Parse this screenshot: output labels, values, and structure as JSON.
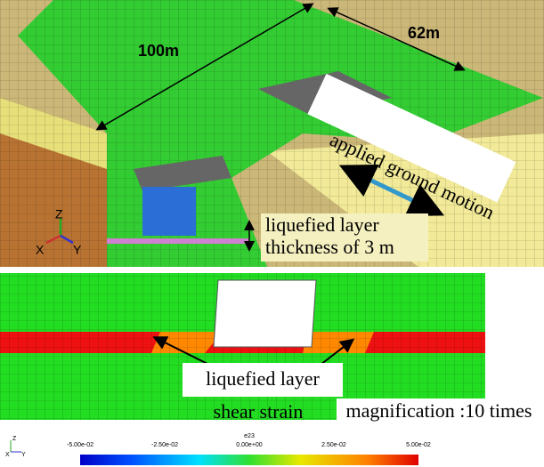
{
  "top_view": {
    "length_label": "100m",
    "width_label": "62m",
    "motion_label": "applied ground motion",
    "layer_label_line1": "liquefied layer",
    "layer_label_line2": "thickness of 3 m",
    "axes": {
      "z": "Z",
      "x": "X",
      "y": "Y"
    }
  },
  "bottom_view": {
    "layer_label": "liquefied layer",
    "quantity_label": "shear strain",
    "magnification_label": "magnification :10 times"
  },
  "colorbar": {
    "title": "e23",
    "labels": [
      "-5.00e-02",
      "-2.50e-02",
      "0.00e+00",
      "2.50e-02",
      "5.00e-02"
    ],
    "axes": {
      "z": "Z",
      "x": "X",
      "y": "Y"
    }
  }
}
